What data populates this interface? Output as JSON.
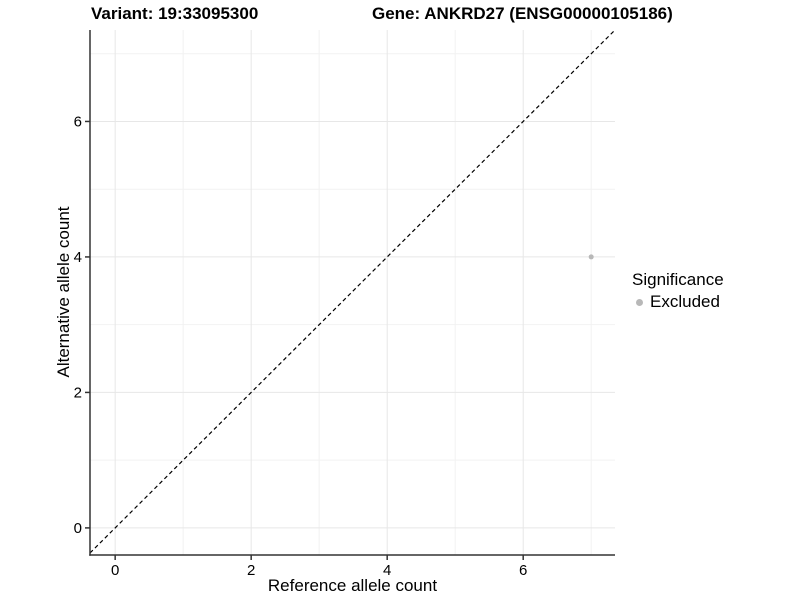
{
  "chart_data": {
    "type": "scatter",
    "title_left": "Variant: 19:33095300",
    "title_right": "Gene: ANKRD27 (ENSG00000105186)",
    "xlabel": "Reference allele count",
    "ylabel": "Alternative allele count",
    "xlim": [
      -0.37,
      7.35
    ],
    "ylim": [
      -0.4,
      7.35
    ],
    "x_ticks": [
      0,
      2,
      4,
      6
    ],
    "y_ticks": [
      0,
      2,
      4,
      6
    ],
    "x_minor_breaks": [
      1,
      3,
      5,
      7
    ],
    "y_minor_breaks": [
      1,
      3,
      5,
      7
    ],
    "grid": true,
    "legend_position": "right",
    "reference_line": {
      "type": "identity y = x",
      "style": "dashed",
      "color": "#000000"
    },
    "series": [
      {
        "name": "Excluded",
        "color": "#b8b8b8",
        "points": [
          {
            "x": 7,
            "y": 4
          }
        ]
      }
    ],
    "legend": {
      "title": "Significance",
      "items": [
        {
          "label": "Excluded",
          "color": "#b8b8b8"
        }
      ]
    },
    "colors": {
      "background": "#ffffff",
      "grid_major": "#e7e7e7",
      "grid_minor": "#f2f2f2",
      "axis_line": "#333333",
      "text": "#000000"
    }
  }
}
